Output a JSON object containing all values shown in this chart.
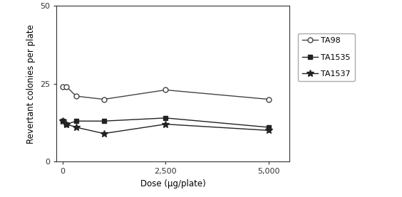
{
  "title": "",
  "xlabel": "Dose (μg/plate)",
  "ylabel": "Revertant colonies per plate",
  "xlim": [
    -150,
    5500
  ],
  "ylim": [
    0,
    50
  ],
  "yticks": [
    0,
    25,
    50
  ],
  "xticks": [
    0,
    2500,
    5000
  ],
  "xticklabels": [
    "0",
    "2,500",
    "5,000"
  ],
  "series": [
    {
      "label": "TA98",
      "x": [
        0,
        100,
        333,
        1000,
        2500,
        5000
      ],
      "y": [
        24,
        24,
        21,
        20,
        23,
        20
      ],
      "color": "#444444",
      "marker": "o",
      "markerfacecolor": "white",
      "markeredgecolor": "#444444",
      "markersize": 5,
      "linewidth": 1.0
    },
    {
      "label": "TA1535",
      "x": [
        0,
        100,
        333,
        1000,
        2500,
        5000
      ],
      "y": [
        13,
        12,
        13,
        13,
        14,
        11
      ],
      "color": "#222222",
      "marker": "s",
      "markerfacecolor": "#222222",
      "markeredgecolor": "#222222",
      "markersize": 4,
      "linewidth": 1.0
    },
    {
      "label": "TA1537",
      "x": [
        0,
        100,
        333,
        1000,
        2500,
        5000
      ],
      "y": [
        13,
        12,
        11,
        9,
        12,
        10
      ],
      "color": "#222222",
      "marker": "*",
      "markerfacecolor": "#222222",
      "markeredgecolor": "#222222",
      "markersize": 7,
      "linewidth": 1.0
    }
  ],
  "background_color": "#ffffff",
  "legend_fontsize": 8,
  "axis_fontsize": 8.5,
  "tick_fontsize": 8
}
